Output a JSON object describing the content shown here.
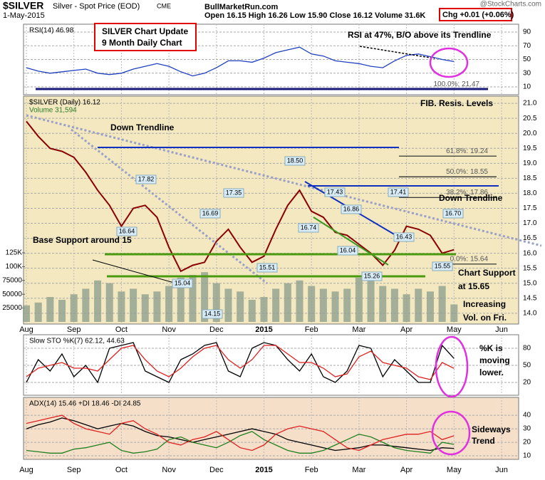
{
  "header": {
    "symbol": "$SILVER",
    "name": "Silver - Spot Price (EOD)",
    "exchange": "CME",
    "date": "1-May-2015",
    "quote": "Open 16.15 High 16.26 Low 15.90 Close 16.12 Volume 31.6K",
    "change": "Chg +0.01 (+0.06%)",
    "source": "@StockCharts.com",
    "site": "BullMarketRun.com",
    "box": [
      "SILVER Chart Update",
      "9 Month Daily Chart"
    ]
  },
  "chart_data": [
    {
      "type": "line",
      "title": "RSI(14) 46.98",
      "background": "#ffffff",
      "ylim": [
        -1.4,
        101.4
      ],
      "yticks": [
        10,
        30,
        50,
        70,
        90
      ],
      "grid": true,
      "annotations": [
        "RSI at 47%, B/O above its Trendline"
      ],
      "series": [
        {
          "color": "#2040c0",
          "values": [
            38,
            33,
            30,
            32,
            34,
            36,
            30,
            28,
            30,
            36,
            40,
            44,
            40,
            32,
            26,
            30,
            38,
            48,
            48,
            46,
            52,
            60,
            64,
            68,
            58,
            55,
            48,
            46,
            44,
            40,
            38,
            48,
            56,
            58,
            54,
            50,
            46.98
          ]
        }
      ]
    },
    {
      "type": "line",
      "title": "$SILVER (Daily) 16.12",
      "background": "#f3e8bf",
      "grid": true,
      "categories": [
        "Aug",
        null,
        null,
        null,
        "Sep",
        null,
        null,
        null,
        "Oct",
        null,
        null,
        null,
        "Nov",
        null,
        null,
        null,
        "Dec",
        null,
        null,
        null,
        "2015",
        null,
        null,
        null,
        "Feb",
        null,
        null,
        null,
        "Mar",
        null,
        null,
        null,
        "Apr",
        null,
        null,
        null,
        "May",
        null,
        null,
        null,
        "Jun",
        null
      ],
      "ylim": [
        13.64,
        21.24
      ],
      "yticks": [
        {
          "value": 14,
          "label": "14.0"
        },
        14.5,
        {
          "value": 15,
          "label": "15.0"
        },
        15.5,
        {
          "value": 16,
          "label": "16.0"
        },
        16.5,
        {
          "value": 17,
          "label": "17.0"
        },
        17.5,
        {
          "value": 18,
          "label": "18.0"
        },
        18.5,
        {
          "value": 19,
          "label": "19.0"
        },
        19.5,
        {
          "value": 20,
          "label": "20.0"
        },
        20.5,
        {
          "value": 21,
          "label": "21.0"
        }
      ],
      "y2lim": [
        -3866,
        408500
      ],
      "y2ticks": [
        25000,
        50000,
        75000,
        {
          "value": 100000,
          "label": "100K"
        },
        {
          "value": 125000,
          "label": "125K"
        }
      ],
      "series": [
        {
          "name": "$SILVER (Daily) 16.12",
          "color": "#8b0000",
          "values": [
            20.4,
            19.9,
            19.5,
            19.4,
            19.2,
            18.7,
            18.1,
            17.6,
            16.9,
            17.5,
            17.6,
            17.2,
            16.2,
            15.4,
            15.6,
            15.7,
            16.4,
            16.8,
            16.2,
            15.7,
            15.9,
            16.8,
            17.6,
            18.1,
            17.4,
            17.2,
            16.7,
            16.6,
            16.3,
            16.0,
            15.6,
            16.1,
            16.9,
            16.8,
            16.6,
            16.0,
            16.12,
            null,
            null,
            null,
            null,
            null
          ]
        },
        {
          "name": "Volume 31,594",
          "color": "#8fa08f",
          "axis": "y2",
          "values": [
            30000,
            35000,
            45000,
            40000,
            50000,
            60000,
            75000,
            70000,
            55000,
            60000,
            50000,
            55000,
            65000,
            80000,
            85000,
            90000,
            70000,
            60000,
            55000,
            40000,
            45000,
            60000,
            70000,
            75000,
            65000,
            60000,
            55000,
            60000,
            80000,
            75000,
            65000,
            60000,
            50000,
            60000,
            55000,
            65000,
            31594,
            null,
            null,
            null,
            null,
            null
          ]
        }
      ],
      "price_labels": [
        17.82,
        16.64,
        16.69,
        17.35,
        15.04,
        14.15,
        15.51,
        {
          "value": 18.5,
          "label": "18.50"
        },
        17.43,
        16.74,
        16.86,
        16.04,
        15.26,
        17.41,
        16.43,
        {
          "value": 16.7,
          "label": "16.70"
        },
        15.55
      ],
      "fib_levels": [
        {
          "value": 21.47,
          "label": "100.0%: 21.47"
        },
        {
          "value": 19.24,
          "label": "61.8%: 19.24"
        },
        {
          "value": 18.55,
          "label": "50.0%: 18.55"
        },
        {
          "value": 17.86,
          "label": "38.2%: 17.86"
        },
        {
          "value": 15.64,
          "label": "0.0%: 15.64"
        }
      ],
      "annotations": [
        "FIB. Resis. Levels",
        "Down Trendline",
        "Down Trendline",
        "Base Support around 15",
        "Chart Support",
        "at 15.65",
        "Increasing",
        "Vol. on Fri."
      ]
    },
    {
      "type": "line",
      "title": "Slow STO %K(7) 62.12, 44.63",
      "background": "#ffffff",
      "ylim": [
        -2.5,
        103.75
      ],
      "yticks": [
        20,
        50,
        80
      ],
      "grid": true,
      "annotations": [
        "%K is",
        "moving",
        "lower."
      ],
      "series": [
        {
          "color": "#000000",
          "values": [
            20,
            60,
            40,
            70,
            30,
            50,
            20,
            80,
            85,
            90,
            40,
            30,
            20,
            60,
            70,
            85,
            90,
            40,
            30,
            80,
            90,
            85,
            60,
            40,
            70,
            30,
            20,
            40,
            85,
            80,
            30,
            60,
            40,
            20,
            20,
            85,
            62.12
          ]
        },
        {
          "color": "#e02020",
          "values": [
            30,
            45,
            50,
            55,
            45,
            45,
            40,
            60,
            80,
            85,
            60,
            40,
            30,
            45,
            65,
            80,
            85,
            60,
            45,
            60,
            85,
            85,
            70,
            55,
            55,
            45,
            30,
            35,
            65,
            75,
            55,
            50,
            45,
            30,
            25,
            55,
            44.63
          ]
        }
      ]
    },
    {
      "type": "line",
      "title": "ADX(14) 15.46 +DI 18.46 -DI 24.85",
      "background": "#f5dfc8",
      "ylim": [
        7.4,
        53.2
      ],
      "yticks": [
        10,
        20,
        30,
        40
      ],
      "grid": true,
      "annotations": [
        "Sideways",
        "Trend"
      ],
      "series": [
        {
          "color": "#000000",
          "values": [
            30,
            33,
            35,
            38,
            36,
            33,
            30,
            32,
            34,
            32,
            28,
            25,
            24,
            22,
            20,
            22,
            24,
            26,
            28,
            30,
            28,
            26,
            22,
            20,
            18,
            16,
            14,
            15,
            16,
            18,
            18,
            17,
            16,
            15,
            14,
            16,
            15.46
          ]
        },
        {
          "color": "#208020",
          "values": [
            14,
            13,
            12,
            12,
            15,
            16,
            18,
            20,
            14,
            12,
            13,
            15,
            22,
            24,
            20,
            18,
            16,
            20,
            25,
            28,
            22,
            18,
            14,
            12,
            12,
            14,
            18,
            22,
            26,
            24,
            20,
            16,
            14,
            13,
            12,
            20,
            18.46
          ]
        },
        {
          "color": "#e02020",
          "values": [
            34,
            36,
            38,
            40,
            34,
            30,
            28,
            26,
            34,
            36,
            30,
            26,
            20,
            18,
            22,
            24,
            28,
            22,
            16,
            14,
            18,
            26,
            30,
            32,
            30,
            28,
            22,
            16,
            14,
            18,
            22,
            24,
            26,
            26,
            28,
            22,
            24.85
          ]
        }
      ]
    }
  ]
}
